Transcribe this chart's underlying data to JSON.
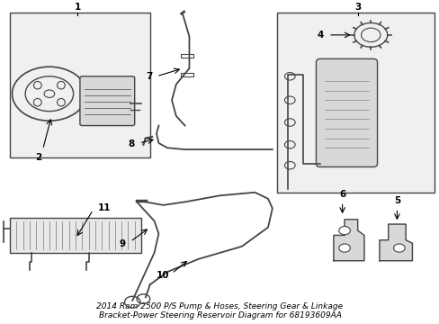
{
  "bg_color": "#ffffff",
  "diagram_bg": "#f0f0f0",
  "line_color": "#444444",
  "label_color": "#000000",
  "title": "2014 Ram 2500 P/S Pump & Hoses, Steering Gear & Linkage\nBracket-Power Steering Reservoir Diagram for 68193609AA",
  "title_fontsize": 6.5
}
